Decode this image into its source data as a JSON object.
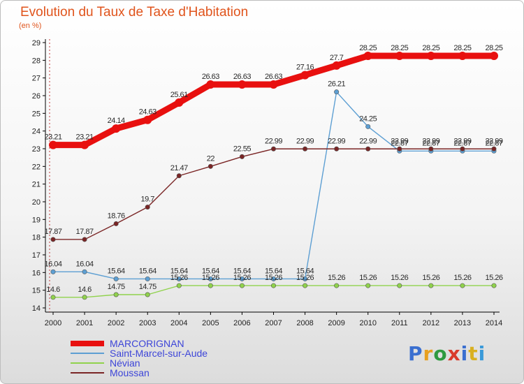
{
  "header": {
    "title": "Evolution du Taux de Taxe d'Habitation",
    "subtitle": "(en %)"
  },
  "logo": {
    "text": "Proxiti",
    "colors": [
      "#3a6fd0",
      "#e8a020",
      "#2f9a40",
      "#d93b2b",
      "#3a6fd0",
      "#d9b020",
      "#3a9ad9"
    ]
  },
  "chart_data": {
    "type": "line",
    "title": "Evolution du Taux de Taxe d'Habitation",
    "subtitle": "(en %)",
    "xlabel": "",
    "ylabel": "",
    "x": [
      "2000",
      "2001",
      "2002",
      "2003",
      "2004",
      "2005",
      "2006",
      "2007",
      "2008",
      "2009",
      "2010",
      "2011",
      "2012",
      "2013",
      "2014"
    ],
    "ylim": [
      14,
      29
    ],
    "yticks": [
      14,
      15,
      16,
      17,
      18,
      19,
      20,
      21,
      22,
      23,
      24,
      25,
      26,
      27,
      28,
      29
    ],
    "grid": false,
    "legend": "bottom-left",
    "series": [
      {
        "name": "MARCORIGNAN",
        "color": "#e8100f",
        "values": [
          23.21,
          23.21,
          24.14,
          24.63,
          25.61,
          26.63,
          26.63,
          26.63,
          27.16,
          27.7,
          28.25,
          28.25,
          28.25,
          28.25,
          28.25
        ],
        "labels": [
          "23.21",
          "23.21",
          "24.14",
          "24.63",
          "25.61",
          "26.63",
          "26.63",
          "26.63",
          "27.16",
          "27.7",
          "28.25",
          "28.25",
          "28.25",
          "28.25",
          "28.25"
        ]
      },
      {
        "name": "Saint-Marcel-sur-Aude",
        "color": "#5d9fd3",
        "values": [
          16.04,
          16.04,
          15.64,
          15.64,
          15.64,
          15.64,
          15.64,
          15.64,
          15.64,
          26.21,
          24.25,
          22.87,
          22.87,
          22.87,
          22.87
        ],
        "labels": [
          "16.04",
          "16.04",
          "15.64",
          "15.64",
          "15.64",
          "15.64",
          "15.64",
          "15.64",
          "15.64",
          "26.21",
          "24.25",
          "22.87",
          "22.87",
          "22.87",
          "22.87"
        ]
      },
      {
        "name": "Névian",
        "color": "#90d24c",
        "values": [
          14.6,
          14.6,
          14.75,
          14.75,
          15.26,
          15.26,
          15.26,
          15.26,
          15.26,
          15.26,
          15.26,
          15.26,
          15.26,
          15.26,
          15.26
        ],
        "labels": [
          "14.6",
          "14.6",
          "14.75",
          "14.75",
          "15.26",
          "15.26",
          "15.26",
          "15.26",
          "15.26",
          "15.26",
          "15.26",
          "15.26",
          "15.26",
          "15.26",
          "15.26"
        ]
      },
      {
        "name": "Moussan",
        "color": "#7a2525",
        "values": [
          17.87,
          17.87,
          18.76,
          19.7,
          21.47,
          22,
          22.55,
          22.99,
          22.99,
          22.99,
          22.99,
          22.99,
          22.99,
          22.99,
          22.99
        ],
        "labels": [
          "17.87",
          "17.87",
          "18.76",
          "19.7",
          "21.47",
          "22",
          "22.55",
          "22.99",
          "22.99",
          "22.99",
          "22.99",
          "22.99",
          "22.99",
          "22.99",
          "22.99"
        ]
      }
    ]
  }
}
